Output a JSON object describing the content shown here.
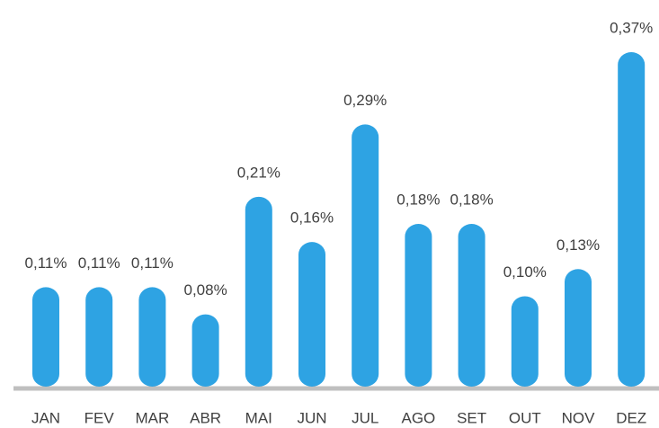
{
  "chart_data": {
    "type": "bar",
    "categories": [
      "JAN",
      "FEV",
      "MAR",
      "ABR",
      "MAI",
      "JUN",
      "JUL",
      "AGO",
      "SET",
      "OUT",
      "NOV",
      "DEZ"
    ],
    "values": [
      0.11,
      0.11,
      0.11,
      0.08,
      0.21,
      0.16,
      0.29,
      0.18,
      0.18,
      0.1,
      0.13,
      0.37
    ],
    "value_labels": [
      "0,11%",
      "0,11%",
      "0,11%",
      "0,08%",
      "0,21%",
      "0,16%",
      "0,29%",
      "0,18%",
      "0,18%",
      "0,10%",
      "0,13%",
      "0,37%"
    ],
    "color": "#2ea3e3"
  }
}
